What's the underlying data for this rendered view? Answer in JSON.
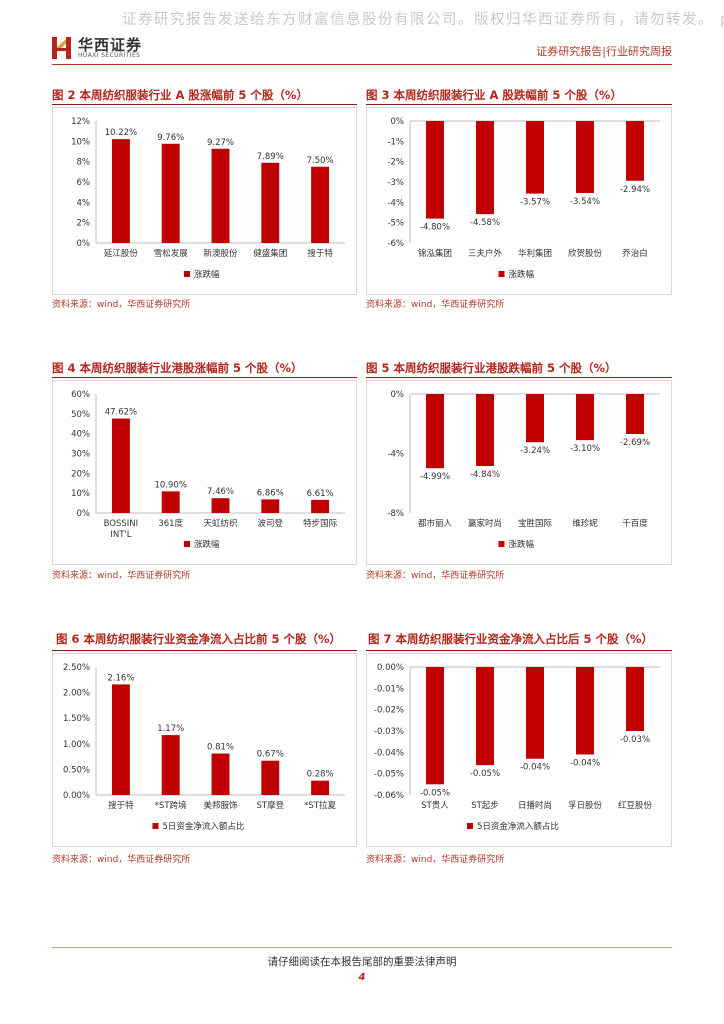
{
  "header": {
    "watermark": "证券研究报告发送给东方财富信息股份有限公司。版权归华西证券所有，请勿转发。 p-",
    "logo_cn": "华西证券",
    "logo_en": "HUAXI SECURITIES",
    "report_type": "证券研究报告|行业研究周报"
  },
  "figures": [
    {
      "title": "图 2 本周纺织服装行业 A 股涨幅前 5 个股（%）",
      "source": "资料来源：wind，华西证券研究所"
    },
    {
      "title": "图 3 本周纺织服装行业 A 股跌幅前 5 个股（%）",
      "source": "资料来源：wind，华西证券研究所"
    },
    {
      "title": "图 4 本周纺织服装行业港股涨幅前 5 个股（%）",
      "source": "资料来源：wind，华西证券研究所"
    },
    {
      "title": "图 5 本周纺织服装行业港股跌幅前 5 个股（%）",
      "source": "资料来源：wind，华西证券研究所"
    },
    {
      "title": "图 6 本周纺织服装行业资金净流入占比前 5 个股（%）",
      "source": "资料来源：wind，华西证券研究所"
    },
    {
      "title": "图 7 本周纺织服装行业资金净流入占比后 5 个股（%）",
      "source": "资料来源：wind，华西证券研究所"
    }
  ],
  "chart_data": [
    {
      "type": "bar",
      "categories": [
        "延江股份",
        "雪松发展",
        "新澳股份",
        "健盛集团",
        "搜于特"
      ],
      "series": [
        {
          "name": "涨跌幅",
          "values": [
            10.22,
            9.76,
            9.27,
            7.89,
            7.5
          ]
        }
      ],
      "data_labels": [
        "10.22%",
        "9.76%",
        "9.27%",
        "7.89%",
        "7.50%"
      ],
      "ylim": [
        0,
        12
      ],
      "yticks": [
        0,
        2,
        4,
        6,
        8,
        10,
        12
      ],
      "ytick_labels": [
        "0%",
        "2%",
        "4%",
        "6%",
        "8%",
        "10%",
        "12%"
      ],
      "grid": false,
      "legend": "bottom",
      "color": "#c00000"
    },
    {
      "type": "bar",
      "categories": [
        "锦泓集团",
        "三夫户外",
        "华利集团",
        "欣贺股份",
        "乔治白"
      ],
      "series": [
        {
          "name": "涨跌幅",
          "values": [
            -4.8,
            -4.58,
            -3.57,
            -3.54,
            -2.94
          ]
        }
      ],
      "data_labels": [
        "-4.80%",
        "-4.58%",
        "-3.57%",
        "-3.54%",
        "-2.94%"
      ],
      "ylim": [
        -6,
        0
      ],
      "yticks": [
        0,
        -1,
        -2,
        -3,
        -4,
        -5,
        -6
      ],
      "ytick_labels": [
        "0%",
        "-1%",
        "-2%",
        "-3%",
        "-4%",
        "-5%",
        "-6%"
      ],
      "grid": false,
      "legend": "bottom",
      "color": "#c00000"
    },
    {
      "type": "bar",
      "categories": [
        "BOSSINI INT'L",
        "361度",
        "天虹纺织",
        "波司登",
        "特步国际"
      ],
      "series": [
        {
          "name": "涨跌幅",
          "values": [
            47.62,
            10.9,
            7.46,
            6.86,
            6.61
          ]
        }
      ],
      "data_labels": [
        "47.62%",
        "10.90%",
        "7.46%",
        "6.86%",
        "6.61%"
      ],
      "ylim": [
        0,
        60
      ],
      "yticks": [
        0,
        10,
        20,
        30,
        40,
        50,
        60
      ],
      "ytick_labels": [
        "0%",
        "10%",
        "20%",
        "30%",
        "40%",
        "50%",
        "60%"
      ],
      "grid": false,
      "legend": "bottom",
      "color": "#c00000"
    },
    {
      "type": "bar",
      "categories": [
        "都市丽人",
        "赢家时尚",
        "宝胜国际",
        "维珍妮",
        "千百度"
      ],
      "series": [
        {
          "name": "涨跌幅",
          "values": [
            -4.99,
            -4.84,
            -3.24,
            -3.1,
            -2.69
          ]
        }
      ],
      "data_labels": [
        "-4.99%",
        "-4.84%",
        "-3.24%",
        "-3.10%",
        "-2.69%"
      ],
      "ylim": [
        -8,
        0
      ],
      "yticks": [
        0,
        -4,
        -8
      ],
      "ytick_labels": [
        "0%",
        "-4%",
        "-8%"
      ],
      "grid": false,
      "legend": "bottom",
      "color": "#c00000"
    },
    {
      "type": "bar",
      "categories": [
        "搜于特",
        "*ST跨境",
        "美邦服饰",
        "ST摩登",
        "*ST拉夏"
      ],
      "series": [
        {
          "name": "5日资金净流入额占比",
          "values": [
            2.16,
            1.17,
            0.81,
            0.67,
            0.28
          ]
        }
      ],
      "data_labels": [
        "2.16%",
        "1.17%",
        "0.81%",
        "0.67%",
        "0.28%"
      ],
      "ylim": [
        0,
        2.5
      ],
      "yticks": [
        0,
        0.5,
        1.0,
        1.5,
        2.0,
        2.5
      ],
      "ytick_labels": [
        "0.00%",
        "0.50%",
        "1.00%",
        "1.50%",
        "2.00%",
        "2.50%"
      ],
      "grid": false,
      "legend": "bottom",
      "color": "#c00000"
    },
    {
      "type": "bar",
      "categories": [
        "ST贵人",
        "ST起步",
        "日播时尚",
        "孚日股份",
        "红豆股份"
      ],
      "series": [
        {
          "name": "5日资金净流入额占比",
          "values": [
            -0.055,
            -0.046,
            -0.043,
            -0.041,
            -0.03
          ]
        }
      ],
      "data_labels": [
        "-0.05%",
        "-0.05%",
        "-0.04%",
        "-0.04%",
        "-0.03%"
      ],
      "ylim": [
        -0.06,
        0
      ],
      "yticks": [
        0,
        -0.01,
        -0.02,
        -0.03,
        -0.04,
        -0.05,
        -0.06
      ],
      "ytick_labels": [
        "0.00%",
        "-0.01%",
        "-0.02%",
        "-0.03%",
        "-0.04%",
        "-0.05%",
        "-0.06%"
      ],
      "grid": false,
      "legend": "bottom",
      "color": "#c00000"
    }
  ],
  "footer": {
    "disclaimer": "请仔细阅读在本报告尾部的重要法律声明",
    "page_number": "4"
  }
}
